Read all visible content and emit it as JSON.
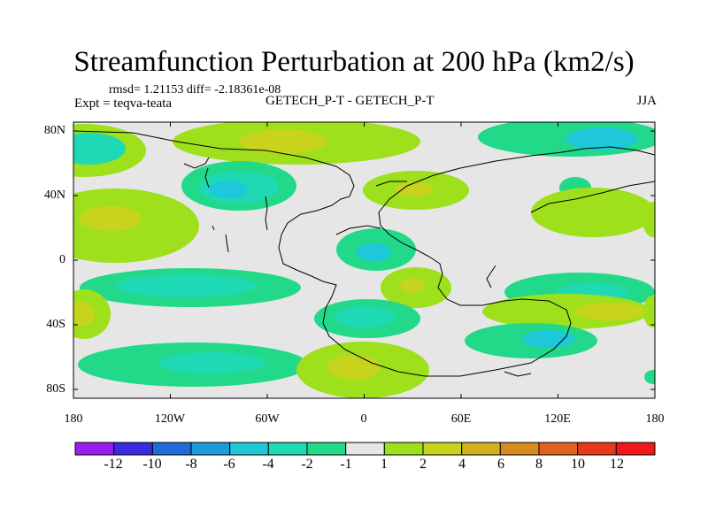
{
  "title": "Streamfunction Perturbation at 200 hPa (km2/s)",
  "stats": "rmsd= 1.21153 diff= -2.18361e-08",
  "experiment": "Expt = teqva-teata",
  "center_label": "GETECH_P-T - GETECH_P-T",
  "season": "JJA",
  "map": {
    "lat_ticks": [
      "80N",
      "40N",
      "0",
      "40S",
      "80S"
    ],
    "lon_ticks": [
      "180",
      "120W",
      "60W",
      "0",
      "60E",
      "120E",
      "180"
    ]
  },
  "colorbar": {
    "labels": [
      "-12",
      "-10",
      "-8",
      "-6",
      "-4",
      "-2",
      "-1",
      "1",
      "2",
      "4",
      "6",
      "8",
      "10",
      "12"
    ],
    "colors": [
      "#9a1ef0",
      "#3a2ce0",
      "#1f6cd8",
      "#1e9ad8",
      "#1ec8d8",
      "#1fd8b4",
      "#22d98a",
      "#e6e6e6",
      "#9ee01c",
      "#c8d41c",
      "#d4b01e",
      "#d88a1e",
      "#e0621e",
      "#e8381c",
      "#f01818"
    ]
  },
  "palette": {
    "background": "#e6e6e6",
    "pos_low": "#9ee01c",
    "pos_mid": "#c8d41c",
    "neg_low": "#22d98a",
    "neg_mid": "#1fd8b4",
    "neg_high": "#1ec8d8"
  }
}
